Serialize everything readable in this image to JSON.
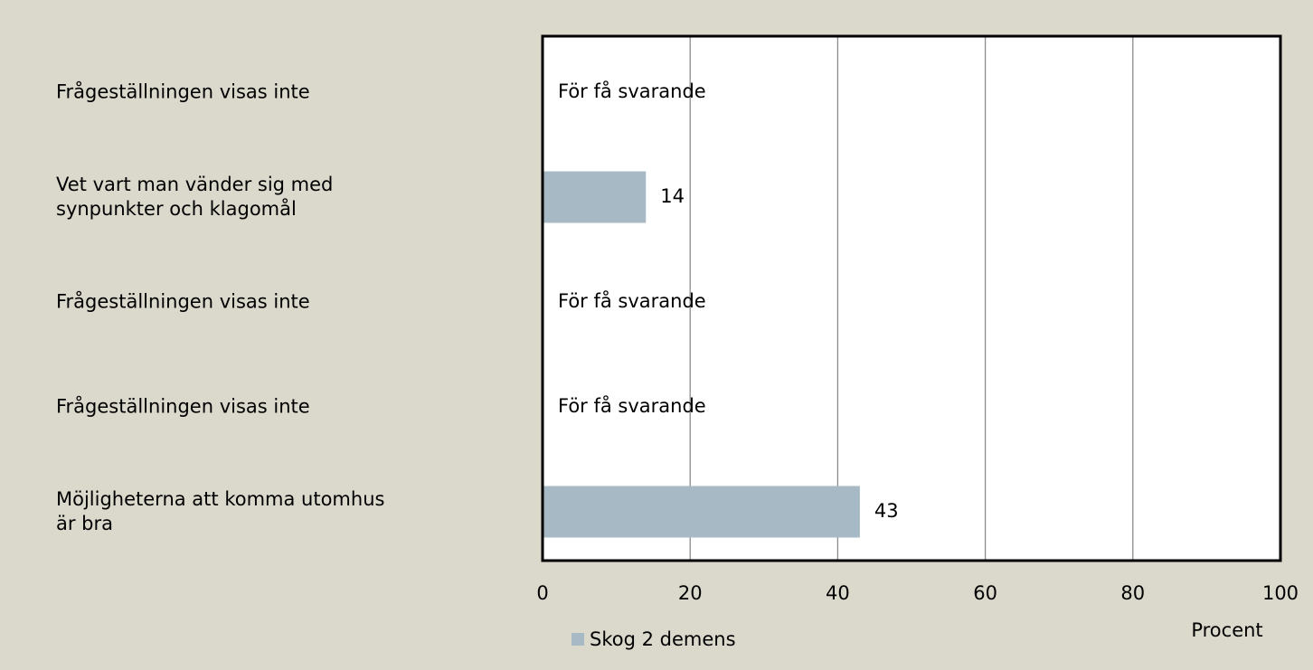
{
  "chart_data": {
    "type": "barh",
    "categories": [
      "Frågeställningen visas inte",
      "Vet vart man vänder sig med\nsynpunkter och klagomål",
      "Frågeställningen visas inte",
      "Frågeställningen visas inte",
      "Möjligheterna att komma utomhus\när bra"
    ],
    "series": [
      {
        "name": "Skog 2 demens",
        "color": "#a6b9c4",
        "values": [
          null,
          14,
          null,
          null,
          43
        ],
        "value_labels": [
          "För få svarande",
          "14",
          "För få svarande",
          "För få svarande",
          "43"
        ]
      }
    ],
    "xlabel": "Procent",
    "xlim": [
      0,
      100
    ],
    "xticks": [
      0,
      20,
      40,
      60,
      80,
      100
    ],
    "grid": true,
    "legend": "bottom"
  }
}
